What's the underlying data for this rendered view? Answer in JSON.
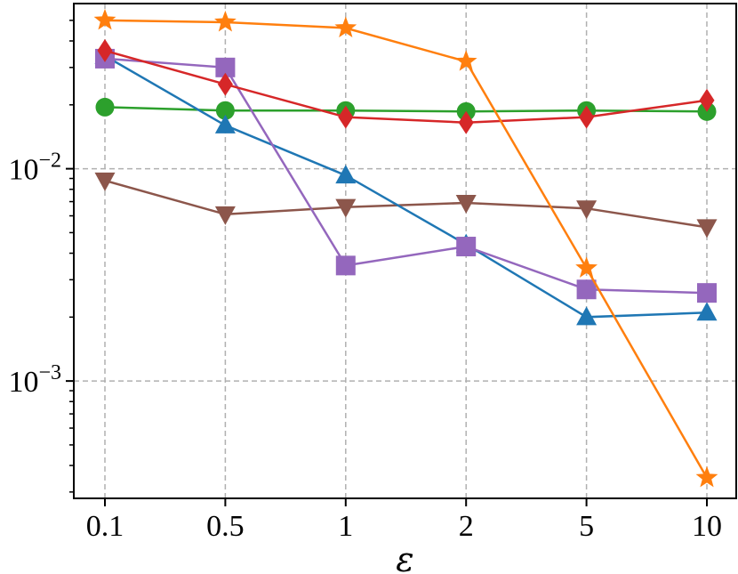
{
  "chart_data": {
    "type": "line",
    "title": "",
    "xlabel": "ε",
    "ylabel": "",
    "yscale": "log",
    "ylim": [
      0.00028,
      0.06
    ],
    "grid": true,
    "categories": [
      "0.1",
      "0.5",
      "1",
      "2",
      "5",
      "10"
    ],
    "ytick_labels": [
      {
        "value": 0.01,
        "base": "10",
        "exp": "−2"
      },
      {
        "value": 0.001,
        "base": "10",
        "exp": "−3"
      }
    ],
    "series": [
      {
        "name": "orange-star",
        "color": "#ff7f0e",
        "marker": "star",
        "values": [
          0.05,
          0.049,
          0.046,
          0.032,
          0.0034,
          0.00035
        ]
      },
      {
        "name": "red-diamond",
        "color": "#d62728",
        "marker": "diamond",
        "values": [
          0.036,
          0.025,
          0.0175,
          0.0165,
          0.0175,
          0.021
        ]
      },
      {
        "name": "purple-square",
        "color": "#9467bd",
        "marker": "square",
        "values": [
          0.033,
          0.03,
          0.0035,
          0.0043,
          0.0027,
          0.0026
        ]
      },
      {
        "name": "blue-triangle-up",
        "color": "#1f77b4",
        "marker": "triangle-up",
        "values": [
          0.034,
          0.016,
          0.0093,
          0.0044,
          0.002,
          0.0021
        ]
      },
      {
        "name": "green-circle",
        "color": "#2ca02c",
        "marker": "circle",
        "values": [
          0.0195,
          0.0188,
          0.0188,
          0.0186,
          0.0188,
          0.0186
        ]
      },
      {
        "name": "brown-triangle-down",
        "color": "#8c564b",
        "marker": "triangle-down",
        "values": [
          0.0088,
          0.0061,
          0.0066,
          0.0069,
          0.0065,
          0.0053
        ]
      }
    ]
  }
}
